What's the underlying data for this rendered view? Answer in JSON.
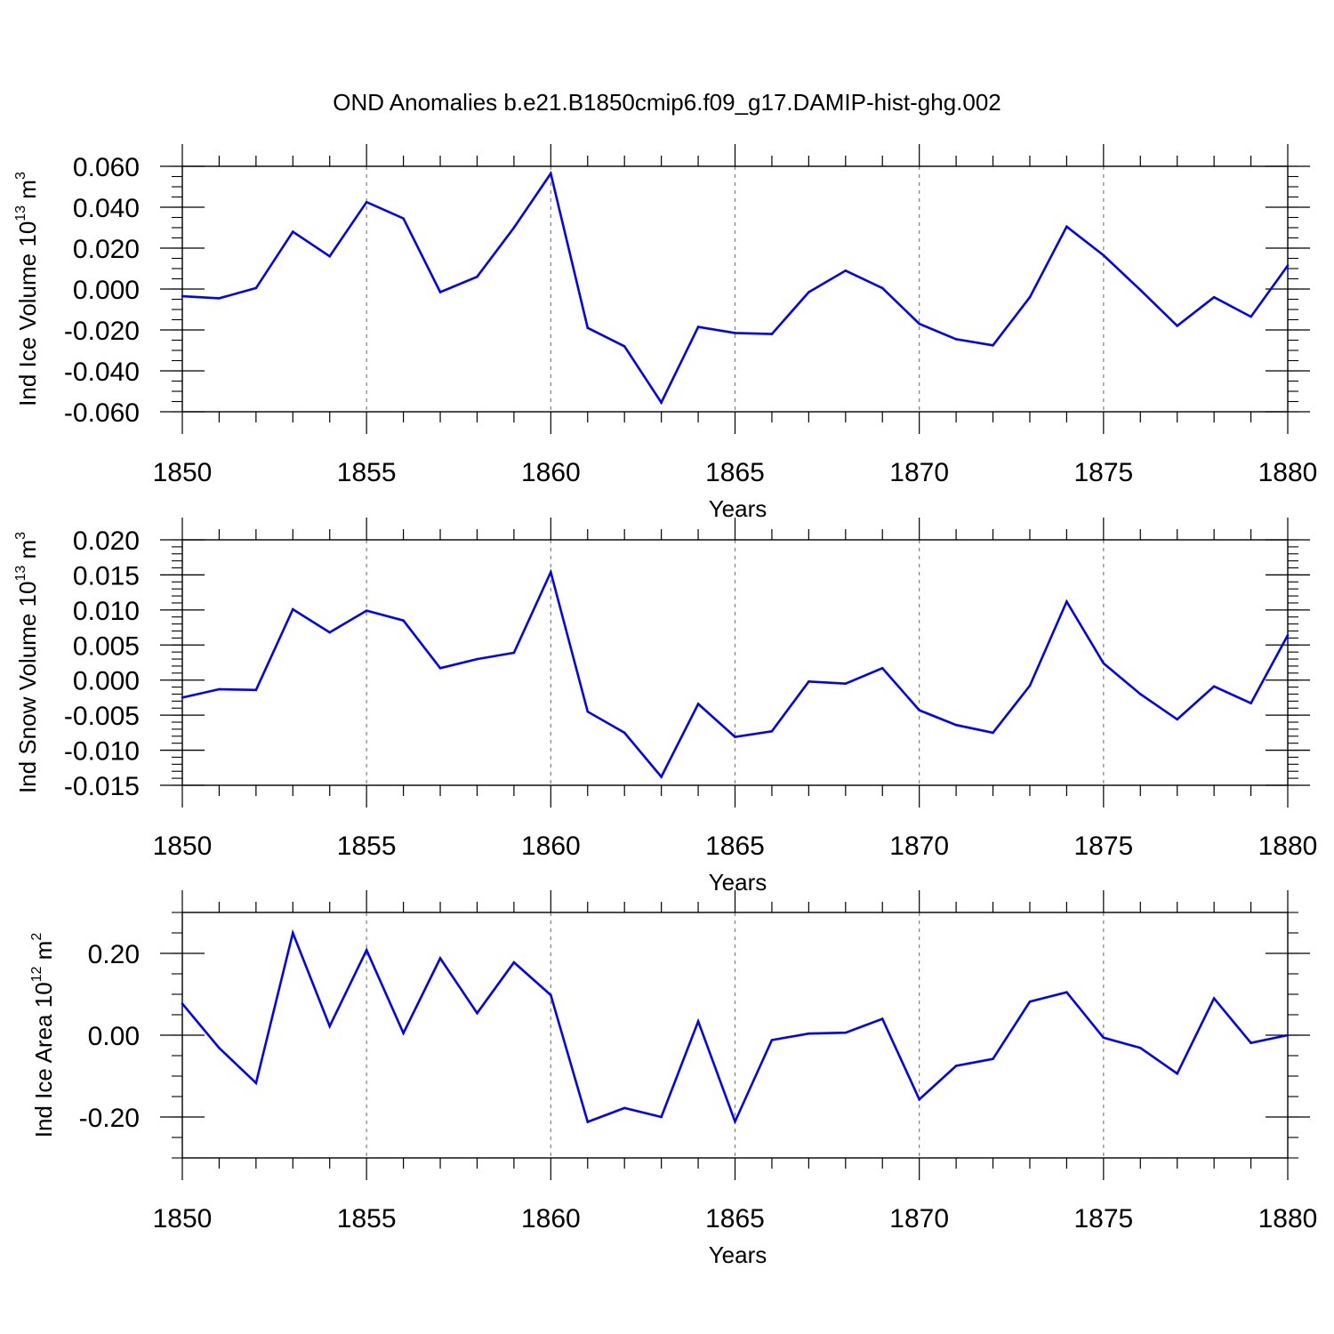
{
  "title": "OND Anomalies b.e21.B1850cmip6.f09_g17.DAMIP-hist-ghg.002",
  "colors": {
    "line": "#0000ff",
    "axis": "#000000",
    "grid": "#808080"
  },
  "chart_data": [
    {
      "type": "line",
      "ylabel": {
        "prefix": "Ind Ice Volume 10",
        "exp": "13",
        "unit": " m",
        "unit_exp": "3"
      },
      "xlabel": "Years",
      "xlim": [
        1850,
        1880
      ],
      "ylim": [
        -0.06,
        0.06
      ],
      "x_ticks": [
        1850,
        1855,
        1860,
        1865,
        1870,
        1875,
        1880
      ],
      "x_tick_labels": [
        "1850",
        "1855",
        "1860",
        "1865",
        "1870",
        "1875",
        "1880"
      ],
      "y_ticks": [
        0.06,
        0.04,
        0.02,
        0.0,
        -0.02,
        -0.04,
        -0.06
      ],
      "y_tick_labels": [
        "0.060",
        "0.040",
        "0.020",
        "0.000",
        "-0.020",
        "-0.040",
        "-0.060"
      ],
      "y_minor_step": 0.005,
      "x": [
        1850,
        1851,
        1852,
        1853,
        1854,
        1855,
        1856,
        1857,
        1858,
        1859,
        1860,
        1861,
        1862,
        1863,
        1864,
        1865,
        1866,
        1867,
        1868,
        1869,
        1870,
        1871,
        1872,
        1873,
        1874,
        1875,
        1876,
        1877,
        1878,
        1879,
        1880
      ],
      "series": [
        {
          "values": [
            -0.0035,
            -0.0045,
            0.0005,
            0.028,
            0.016,
            0.0425,
            0.0345,
            -0.0015,
            0.006,
            0.03,
            0.0565,
            -0.019,
            -0.028,
            -0.0555,
            -0.0185,
            -0.0215,
            -0.022,
            -0.0015,
            0.009,
            0.0005,
            -0.017,
            -0.0245,
            -0.0275,
            -0.004,
            0.0305,
            0.0165,
            -0.0005,
            -0.018,
            -0.004,
            -0.0135,
            0.0115
          ]
        }
      ]
    },
    {
      "type": "line",
      "ylabel": {
        "prefix": "Ind Snow Volume 10",
        "exp": "13",
        "unit": " m",
        "unit_exp": "3"
      },
      "xlabel": "Years",
      "xlim": [
        1850,
        1880
      ],
      "ylim": [
        -0.015,
        0.02
      ],
      "x_ticks": [
        1850,
        1855,
        1860,
        1865,
        1870,
        1875,
        1880
      ],
      "x_tick_labels": [
        "1850",
        "1855",
        "1860",
        "1865",
        "1870",
        "1875",
        "1880"
      ],
      "y_ticks": [
        0.02,
        0.015,
        0.01,
        0.005,
        0.0,
        -0.005,
        -0.01,
        -0.015
      ],
      "y_tick_labels": [
        "0.020",
        "0.015",
        "0.010",
        "0.005",
        "0.000",
        "-0.005",
        "-0.010",
        "-0.015"
      ],
      "y_minor_step": 0.001,
      "x": [
        1850,
        1851,
        1852,
        1853,
        1854,
        1855,
        1856,
        1857,
        1858,
        1859,
        1860,
        1861,
        1862,
        1863,
        1864,
        1865,
        1866,
        1867,
        1868,
        1869,
        1870,
        1871,
        1872,
        1873,
        1874,
        1875,
        1876,
        1877,
        1878,
        1879,
        1880
      ],
      "series": [
        {
          "values": [
            -0.0025,
            -0.0013,
            -0.0014,
            0.0101,
            0.0068,
            0.0099,
            0.0085,
            0.0017,
            0.003,
            0.0039,
            0.0154,
            -0.0045,
            -0.0075,
            -0.0138,
            -0.0034,
            -0.0081,
            -0.0073,
            -0.0002,
            -0.0005,
            0.0017,
            -0.0043,
            -0.0064,
            -0.0075,
            -0.0008,
            0.0112,
            0.0024,
            -0.002,
            -0.0056,
            -0.0009,
            -0.0033,
            0.0064
          ]
        }
      ]
    },
    {
      "type": "line",
      "ylabel": {
        "prefix": "Ind Ice Area 10",
        "exp": "12",
        "unit": " m",
        "unit_exp": "2"
      },
      "xlabel": "Years",
      "xlim": [
        1850,
        1880
      ],
      "ylim": [
        -0.3,
        0.3
      ],
      "x_ticks": [
        1850,
        1855,
        1860,
        1865,
        1870,
        1875,
        1880
      ],
      "x_tick_labels": [
        "1850",
        "1855",
        "1860",
        "1865",
        "1870",
        "1875",
        "1880"
      ],
      "y_ticks": [
        0.2,
        0.0,
        -0.2
      ],
      "y_tick_labels": [
        "0.20",
        "0.00",
        "-0.20"
      ],
      "y_minor_step": 0.05,
      "x": [
        1850,
        1851,
        1852,
        1853,
        1854,
        1855,
        1856,
        1857,
        1858,
        1859,
        1860,
        1861,
        1862,
        1863,
        1864,
        1865,
        1866,
        1867,
        1868,
        1869,
        1870,
        1871,
        1872,
        1873,
        1874,
        1875,
        1876,
        1877,
        1878,
        1879,
        1880
      ],
      "series": [
        {
          "values": [
            0.077,
            -0.031,
            -0.117,
            0.25,
            0.022,
            0.208,
            0.005,
            0.188,
            0.054,
            0.178,
            0.098,
            -0.212,
            -0.178,
            -0.2,
            0.034,
            -0.211,
            -0.012,
            0.004,
            0.006,
            0.04,
            -0.157,
            -0.075,
            -0.058,
            0.082,
            0.105,
            -0.006,
            -0.031,
            -0.094,
            0.09,
            -0.019,
            0.0
          ]
        }
      ]
    }
  ]
}
